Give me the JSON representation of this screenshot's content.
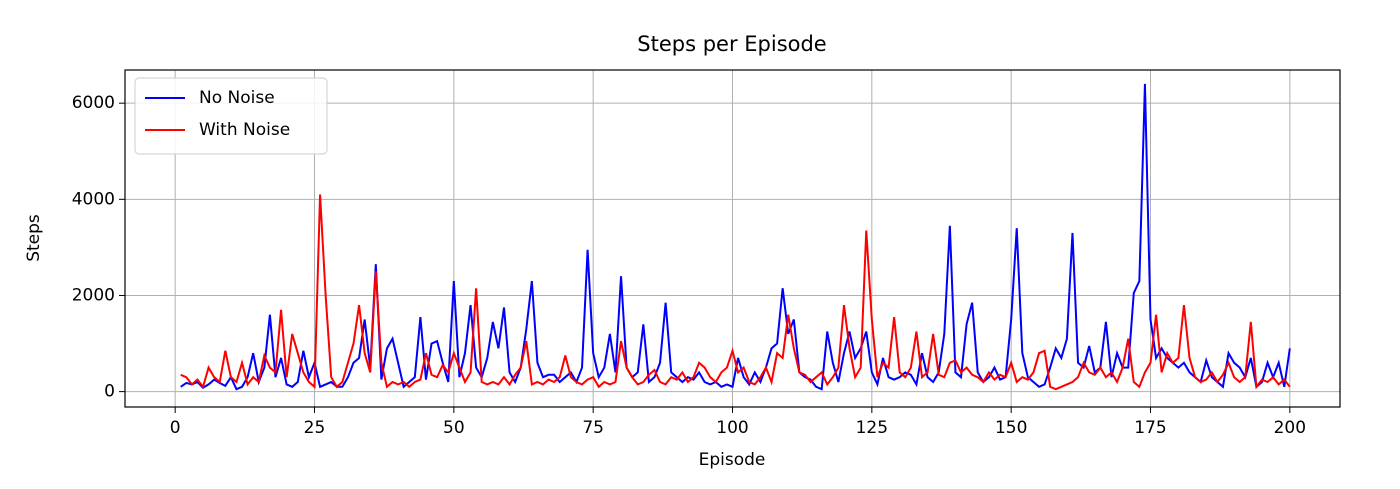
{
  "chart_data": {
    "type": "line",
    "title": "Steps per Episode",
    "x_label": "Episode",
    "y_label": "Steps",
    "x": [
      1,
      2,
      3,
      4,
      5,
      6,
      7,
      8,
      9,
      10,
      11,
      12,
      13,
      14,
      15,
      16,
      17,
      18,
      19,
      20,
      21,
      22,
      23,
      24,
      25,
      26,
      27,
      28,
      29,
      30,
      31,
      32,
      33,
      34,
      35,
      36,
      37,
      38,
      39,
      40,
      41,
      42,
      43,
      44,
      45,
      46,
      47,
      48,
      49,
      50,
      51,
      52,
      53,
      54,
      55,
      56,
      57,
      58,
      59,
      60,
      61,
      62,
      63,
      64,
      65,
      66,
      67,
      68,
      69,
      70,
      71,
      72,
      73,
      74,
      75,
      76,
      77,
      78,
      79,
      80,
      81,
      82,
      83,
      84,
      85,
      86,
      87,
      88,
      89,
      90,
      91,
      92,
      93,
      94,
      95,
      96,
      97,
      98,
      99,
      100,
      101,
      102,
      103,
      104,
      105,
      106,
      107,
      108,
      109,
      110,
      111,
      112,
      113,
      114,
      115,
      116,
      117,
      118,
      119,
      120,
      121,
      122,
      123,
      124,
      125,
      126,
      127,
      128,
      129,
      130,
      131,
      132,
      133,
      134,
      135,
      136,
      137,
      138,
      139,
      140,
      141,
      142,
      143,
      144,
      145,
      146,
      147,
      148,
      149,
      150,
      151,
      152,
      153,
      154,
      155,
      156,
      157,
      158,
      159,
      160,
      161,
      162,
      163,
      164,
      165,
      166,
      167,
      168,
      169,
      170,
      171,
      172,
      173,
      174,
      175,
      176,
      177,
      178,
      179,
      180,
      181,
      182,
      183,
      184,
      185,
      186,
      187,
      188,
      189,
      190,
      191,
      192,
      193,
      194,
      195,
      196,
      197,
      198,
      199,
      200
    ],
    "series": [
      {
        "name": "No Noise",
        "color": "#0000ff",
        "values": [
          100,
          180,
          150,
          200,
          80,
          150,
          250,
          180,
          120,
          300,
          50,
          100,
          300,
          800,
          200,
          500,
          1600,
          300,
          700,
          150,
          100,
          200,
          850,
          300,
          600,
          100,
          150,
          200,
          100,
          100,
          300,
          600,
          700,
          1500,
          500,
          2650,
          250,
          900,
          1100,
          600,
          100,
          200,
          300,
          1550,
          250,
          1000,
          1050,
          600,
          200,
          2300,
          300,
          800,
          1800,
          500,
          300,
          700,
          1450,
          900,
          1750,
          400,
          200,
          500,
          1300,
          2300,
          600,
          300,
          350,
          350,
          200,
          300,
          400,
          200,
          500,
          2950,
          800,
          300,
          500,
          1200,
          400,
          2400,
          500,
          300,
          400,
          1400,
          200,
          300,
          600,
          1850,
          400,
          300,
          200,
          300,
          250,
          400,
          200,
          150,
          200,
          100,
          150,
          100,
          700,
          300,
          150,
          400,
          200,
          500,
          900,
          1000,
          2150,
          1200,
          1500,
          400,
          300,
          250,
          100,
          50,
          1250,
          600,
          200,
          800,
          1250,
          700,
          900,
          1250,
          400,
          150,
          700,
          300,
          250,
          300,
          400,
          350,
          150,
          800,
          300,
          200,
          400,
          1200,
          3450,
          400,
          300,
          1400,
          1850,
          400,
          200,
          300,
          500,
          250,
          300,
          1500,
          3400,
          800,
          300,
          200,
          100,
          150,
          500,
          900,
          700,
          1100,
          3300,
          600,
          500,
          950,
          400,
          500,
          1450,
          300,
          800,
          500,
          500,
          2050,
          2300,
          6400,
          1500,
          700,
          900,
          700,
          600,
          500,
          600,
          400,
          300,
          200,
          650,
          300,
          200,
          100,
          800,
          600,
          500,
          300,
          700,
          100,
          200,
          600,
          300,
          600,
          100,
          900
        ]
      },
      {
        "name": "With Noise",
        "color": "#ff0000",
        "values": [
          350,
          300,
          150,
          250,
          100,
          500,
          300,
          200,
          850,
          300,
          200,
          600,
          150,
          300,
          200,
          750,
          500,
          400,
          1700,
          300,
          1200,
          800,
          400,
          200,
          100,
          4100,
          2000,
          300,
          100,
          200,
          600,
          1000,
          1800,
          800,
          400,
          2500,
          600,
          100,
          200,
          150,
          200,
          100,
          200,
          250,
          800,
          350,
          300,
          550,
          400,
          800,
          500,
          200,
          400,
          2150,
          200,
          150,
          200,
          150,
          300,
          150,
          350,
          500,
          1050,
          150,
          200,
          150,
          250,
          200,
          300,
          750,
          300,
          200,
          150,
          250,
          300,
          100,
          200,
          150,
          200,
          1050,
          500,
          300,
          150,
          200,
          350,
          450,
          200,
          150,
          300,
          250,
          400,
          200,
          300,
          600,
          500,
          300,
          200,
          400,
          500,
          850,
          400,
          500,
          200,
          150,
          300,
          500,
          200,
          800,
          700,
          1600,
          900,
          400,
          350,
          200,
          300,
          400,
          150,
          300,
          500,
          1800,
          900,
          300,
          500,
          3350,
          1500,
          300,
          600,
          500,
          1550,
          400,
          300,
          500,
          1250,
          300,
          400,
          1200,
          350,
          300,
          600,
          650,
          400,
          500,
          350,
          300,
          200,
          400,
          250,
          350,
          300,
          600,
          200,
          300,
          250,
          400,
          800,
          850,
          100,
          50,
          100,
          150,
          200,
          300,
          600,
          400,
          350,
          500,
          300,
          400,
          200,
          500,
          1100,
          200,
          100,
          400,
          600,
          1600,
          400,
          800,
          600,
          700,
          1800,
          700,
          300,
          200,
          250,
          400,
          200,
          350,
          600,
          300,
          200,
          300,
          1450,
          100,
          250,
          200,
          300,
          150,
          250,
          100
        ]
      }
    ],
    "xlim": [
      -9,
      209
    ],
    "ylim": [
      -320,
      6690
    ],
    "xticks": [
      0,
      25,
      50,
      75,
      100,
      125,
      150,
      175,
      200
    ],
    "yticks": [
      0,
      2000,
      4000,
      6000
    ],
    "grid": true,
    "legend": "upper left"
  }
}
